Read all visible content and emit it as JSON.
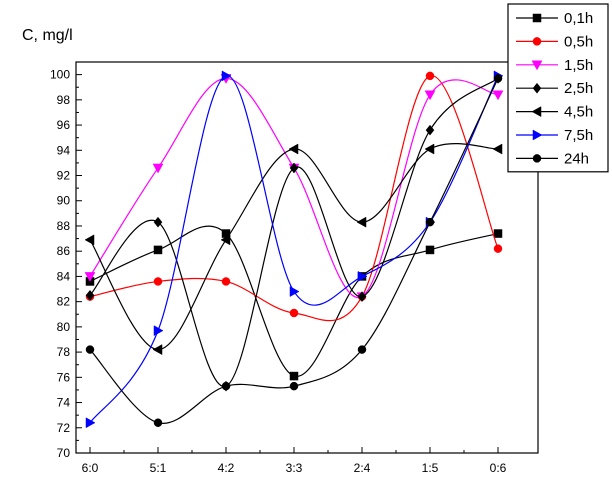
{
  "chart_data": {
    "type": "line",
    "title": "",
    "xlabel": "",
    "ylabel": "C, mg/l",
    "categories": [
      "6:0",
      "5:1",
      "4:2",
      "3:3",
      "2:4",
      "1:5",
      "0:6"
    ],
    "ylim": [
      70,
      101
    ],
    "yticks": [
      70,
      72,
      74,
      76,
      78,
      80,
      82,
      84,
      86,
      88,
      90,
      92,
      94,
      96,
      98,
      100
    ],
    "grid": false,
    "smooth": true,
    "legend_position": "top-right",
    "series": [
      {
        "name": "0,1h",
        "color": "#000000",
        "marker": "square",
        "values": [
          83.6,
          86.1,
          87.4,
          76.1,
          84.0,
          86.1,
          87.4
        ]
      },
      {
        "name": "0,5h",
        "color": "#ff0000",
        "marker": "circle",
        "values": [
          82.4,
          83.6,
          83.6,
          81.1,
          82.4,
          99.9,
          86.2
        ]
      },
      {
        "name": "1,5h",
        "color": "#ff00ff",
        "marker": "triangle-down",
        "values": [
          84.0,
          92.6,
          99.7,
          92.6,
          82.4,
          98.4,
          98.4
        ]
      },
      {
        "name": "2,5h",
        "color": "#000000",
        "marker": "diamond",
        "values": [
          82.5,
          88.3,
          75.3,
          92.6,
          82.4,
          95.6,
          99.7
        ]
      },
      {
        "name": "4,5h",
        "color": "#000000",
        "marker": "triangle-left",
        "values": [
          86.9,
          78.2,
          86.9,
          94.1,
          88.3,
          94.1,
          94.1
        ]
      },
      {
        "name": "7,5h",
        "color": "#0000ff",
        "marker": "triangle-right",
        "values": [
          72.4,
          79.7,
          99.9,
          82.8,
          84.0,
          88.3,
          99.9
        ]
      },
      {
        "name": "24h",
        "color": "#000000",
        "marker": "circle",
        "values": [
          78.2,
          72.4,
          75.3,
          75.3,
          78.2,
          88.3,
          99.7
        ]
      }
    ]
  }
}
